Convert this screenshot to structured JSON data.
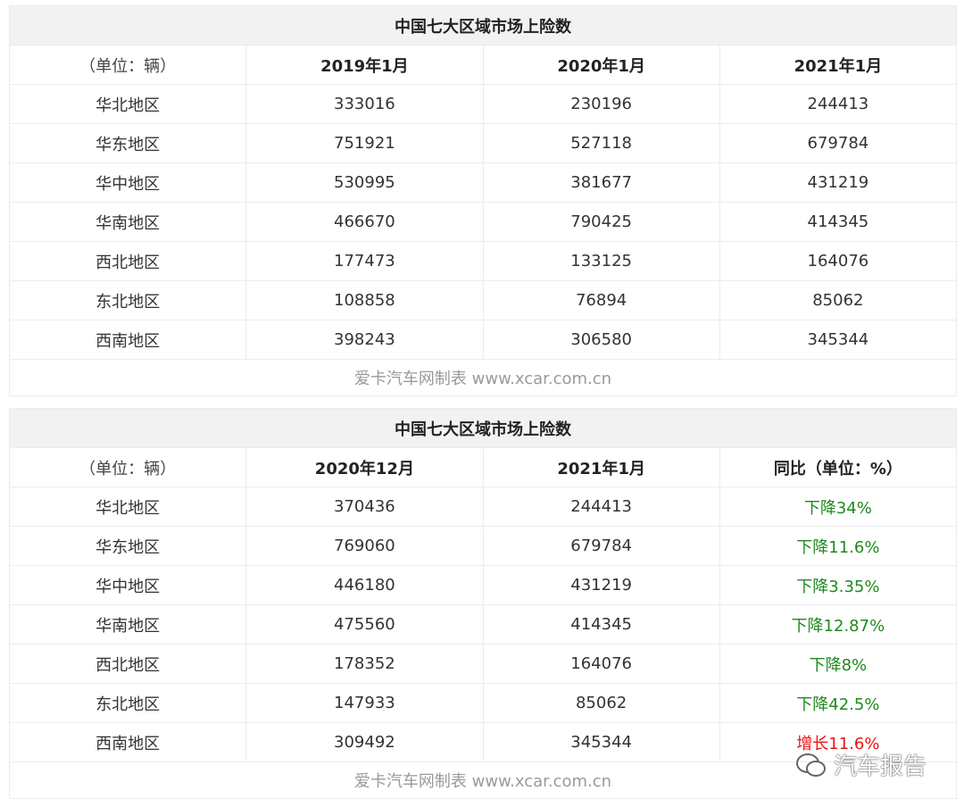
{
  "tables": [
    {
      "title": "中国七大区域市场上险数",
      "header": [
        "（单位：辆）",
        "2019年1月",
        "2020年1月",
        "2021年1月"
      ],
      "rows": [
        [
          "华北地区",
          333016,
          230196,
          244413
        ],
        [
          "华东地区",
          751921,
          527118,
          679784
        ],
        [
          "华中地区",
          530995,
          381677,
          431219
        ],
        [
          "华南地区",
          466670,
          790425,
          414345
        ],
        [
          "西北地区",
          177473,
          133125,
          164076
        ],
        [
          "东北地区",
          108858,
          76894,
          85062
        ],
        [
          "西南地区",
          398243,
          306580,
          345344
        ]
      ],
      "footer": "爱卡汽车网制表 www.xcar.com.cn"
    },
    {
      "title": "中国七大区域市场上险数",
      "header": [
        "（单位：辆）",
        "2020年12月",
        "2021年1月",
        "同比（单位：%）"
      ],
      "rows": [
        [
          "华北地区",
          370436,
          244413,
          "下降34%"
        ],
        [
          "华东地区",
          769060,
          679784,
          "下降11.6%"
        ],
        [
          "华中地区",
          446180,
          431219,
          "下降3.35%"
        ],
        [
          "华南地区",
          475560,
          414345,
          "下降12.87%"
        ],
        [
          "西北地区",
          178352,
          164076,
          "下降8%"
        ],
        [
          "东北地区",
          147933,
          85062,
          "下降42.5%"
        ],
        [
          "西南地区",
          309492,
          345344,
          "增长11.6%"
        ]
      ],
      "last_column_colors": [
        "#1e8a1e",
        "#1e8a1e",
        "#1e8a1e",
        "#1e8a1e",
        "#1e8a1e",
        "#1e8a1e",
        "#ee1111"
      ],
      "footer": "爱卡汽车网制表 www.xcar.com.cn"
    }
  ],
  "watermark": "汽车报告"
}
